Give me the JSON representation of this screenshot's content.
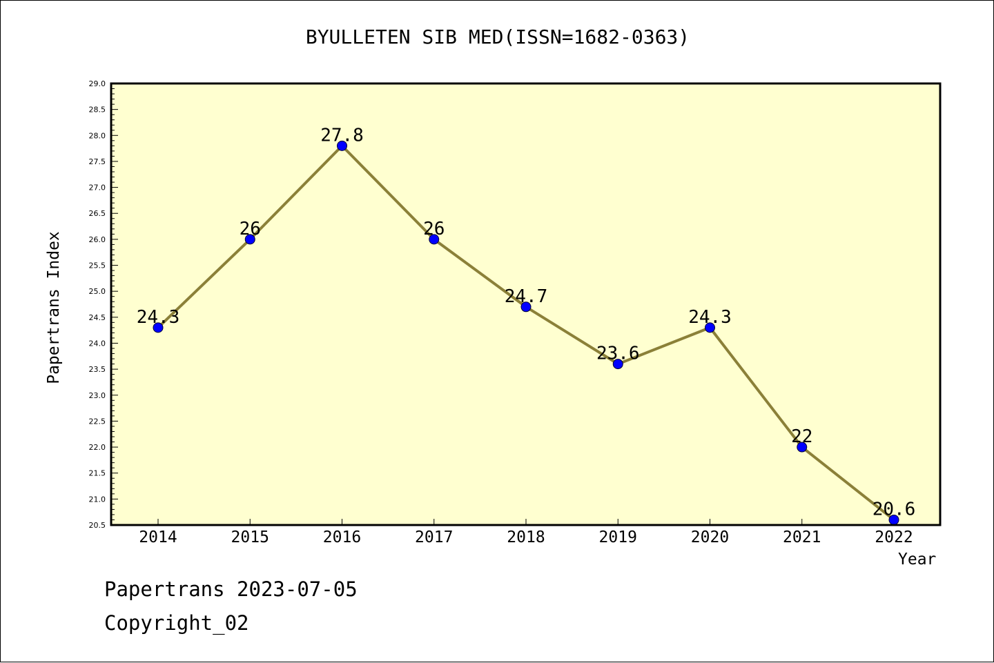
{
  "chart_data": {
    "type": "line",
    "title": "BYULLETEN SIB MED(ISSN=1682-0363)",
    "xlabel": "Year",
    "ylabel": "Papertrans Index",
    "categories": [
      "2014",
      "2015",
      "2016",
      "2017",
      "2018",
      "2019",
      "2020",
      "2021",
      "2022"
    ],
    "series": [
      {
        "values": [
          24.3,
          26,
          27.8,
          26,
          24.7,
          23.6,
          24.3,
          22,
          20.6
        ],
        "data_labels": [
          "24.3",
          "26",
          "27.8",
          "26",
          "24.7",
          "23.6",
          "24.3",
          "22",
          "20.6"
        ]
      }
    ],
    "ylim": [
      20.5,
      29.0
    ],
    "y_ticks": [
      "20.5",
      "21.0",
      "21.5",
      "22.0",
      "22.5",
      "23.0",
      "23.5",
      "24.0",
      "24.5",
      "25.0",
      "25.5",
      "26.0",
      "26.5",
      "27.0",
      "27.5",
      "28.0",
      "28.5",
      "29.0"
    ],
    "grid": false,
    "colors": {
      "plot_background": "#ffffd0",
      "line": "#8b8038",
      "marker": "#0000ff"
    }
  },
  "footer": {
    "date_line": "Papertrans 2023-07-05",
    "copyright": "Copyright_02"
  }
}
